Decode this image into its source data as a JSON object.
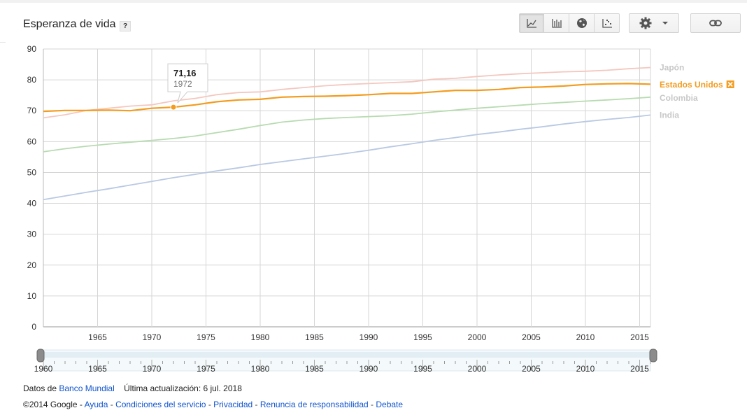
{
  "header": {
    "title": "Esperanza de vida",
    "help": "?"
  },
  "toolbar": {
    "buttons": [
      {
        "icon": "line-chart-icon",
        "active": true
      },
      {
        "icon": "bar-chart-icon",
        "active": false
      },
      {
        "icon": "globe-icon",
        "active": false
      },
      {
        "icon": "scatter-chart-icon",
        "active": false
      }
    ],
    "settings_icon": "gear-icon",
    "link_icon": "link-icon"
  },
  "tooltip": {
    "value": "71,16",
    "year": "1972"
  },
  "footer": {
    "data_prefix": "Datos de",
    "data_source": "Banco Mundial",
    "updated": "Última actualización: 6 jul. 2018",
    "copyright": "©2014 Google -",
    "links": [
      "Ayuda",
      "Condiciones del servicio",
      "Privacidad",
      "Renuncia de responsabilidad",
      "Debate"
    ]
  },
  "chart_data": {
    "type": "line",
    "ylim": [
      0,
      90
    ],
    "xlim": [
      1960,
      2016
    ],
    "yticks": [
      0,
      10,
      20,
      30,
      40,
      50,
      60,
      70,
      80,
      90
    ],
    "xticks": [
      1965,
      1970,
      1975,
      1980,
      1985,
      1990,
      1995,
      2000,
      2005,
      2010,
      2015
    ],
    "range_ticks": [
      1960,
      1965,
      1970,
      1975,
      1980,
      1985,
      1990,
      1995,
      2000,
      2005,
      2010,
      2015
    ],
    "grid": true,
    "legend_position": "right",
    "highlighted_series": "Estados Unidos",
    "x": [
      1960,
      1962,
      1964,
      1966,
      1968,
      1970,
      1972,
      1974,
      1976,
      1978,
      1980,
      1982,
      1984,
      1986,
      1988,
      1990,
      1992,
      1994,
      1996,
      1998,
      2000,
      2002,
      2004,
      2006,
      2008,
      2010,
      2012,
      2014,
      2016
    ],
    "series": [
      {
        "name": "Japón",
        "color": "#f4c7bf",
        "values": [
          67.7,
          68.7,
          70.1,
          70.8,
          71.5,
          71.9,
          73.2,
          74.0,
          75.2,
          75.9,
          76.1,
          76.9,
          77.5,
          78.1,
          78.5,
          78.8,
          79.1,
          79.4,
          80.2,
          80.5,
          81.1,
          81.6,
          82.0,
          82.3,
          82.6,
          82.8,
          83.1,
          83.6,
          84.0
        ]
      },
      {
        "name": "Estados Unidos",
        "color": "#f39c1e",
        "values": [
          69.8,
          70.1,
          70.1,
          70.2,
          70.0,
          70.8,
          71.16,
          71.9,
          72.9,
          73.5,
          73.7,
          74.4,
          74.6,
          74.7,
          74.9,
          75.2,
          75.6,
          75.6,
          76.1,
          76.6,
          76.6,
          76.9,
          77.5,
          77.7,
          78.0,
          78.5,
          78.7,
          78.8,
          78.6
        ]
      },
      {
        "name": "Colombia",
        "color": "#b7dbb0",
        "values": [
          56.7,
          57.7,
          58.5,
          59.2,
          59.8,
          60.4,
          61.0,
          61.8,
          62.9,
          64.0,
          65.2,
          66.3,
          67.0,
          67.5,
          67.8,
          68.1,
          68.4,
          68.9,
          69.6,
          70.2,
          70.8,
          71.3,
          71.8,
          72.3,
          72.7,
          73.1,
          73.5,
          73.9,
          74.4
        ]
      },
      {
        "name": "India",
        "color": "#b9c9e3",
        "values": [
          41.2,
          42.4,
          43.6,
          44.7,
          45.9,
          47.1,
          48.3,
          49.4,
          50.5,
          51.5,
          52.6,
          53.5,
          54.4,
          55.3,
          56.2,
          57.2,
          58.3,
          59.3,
          60.4,
          61.3,
          62.3,
          63.1,
          64.0,
          64.8,
          65.7,
          66.5,
          67.2,
          67.8,
          68.6
        ]
      }
    ]
  }
}
